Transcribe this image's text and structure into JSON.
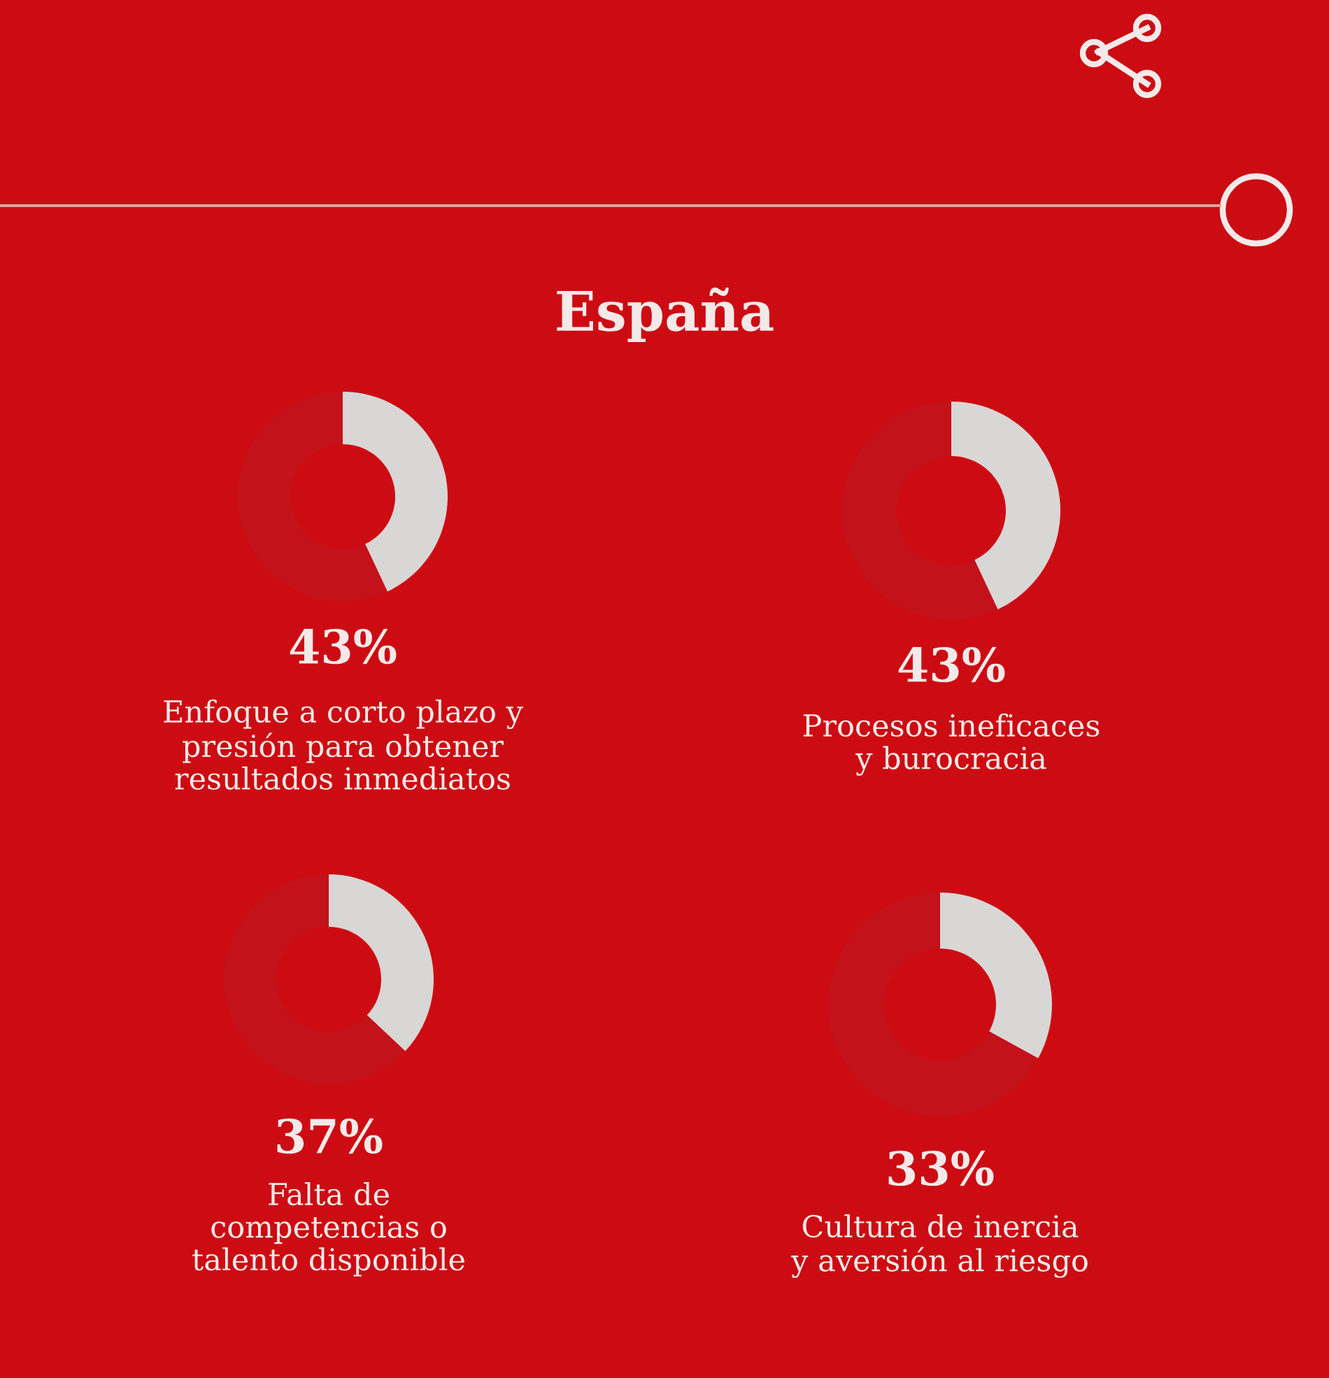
{
  "chart_data": [
    {
      "type": "other",
      "title": "España"
    },
    {
      "type": "donut",
      "categories": [
        null,
        null
      ],
      "values": [
        43,
        57
      ],
      "colors": [
        "#d9d6d6",
        "#c3121a"
      ],
      "title": "43%",
      "subtitle": "Enfoque a corto plazo y\npresión para obtener\nresultados inmediatos"
    },
    {
      "type": "donut",
      "categories": [
        null,
        null
      ],
      "values": [
        43,
        57
      ],
      "colors": [
        "#d9d6d6",
        "#c3121a"
      ],
      "title": "43%",
      "subtitle": "Procesos ineficaces\ny burocracia"
    },
    {
      "type": "donut",
      "categories": [
        null,
        null
      ],
      "values": [
        37,
        63
      ],
      "colors": [
        "#d9d6d6",
        "#c3121a"
      ],
      "title": "37%",
      "subtitle": "Falta de\ncompetencias o\ntalento disponible"
    },
    {
      "type": "donut",
      "categories": [
        null,
        null
      ],
      "values": [
        33,
        67
      ],
      "colors": [
        "#d9d6d6",
        "#c3121a"
      ],
      "title": "33%",
      "subtitle": "Cultura de inercia\ny aversión al riesgo"
    }
  ]
}
